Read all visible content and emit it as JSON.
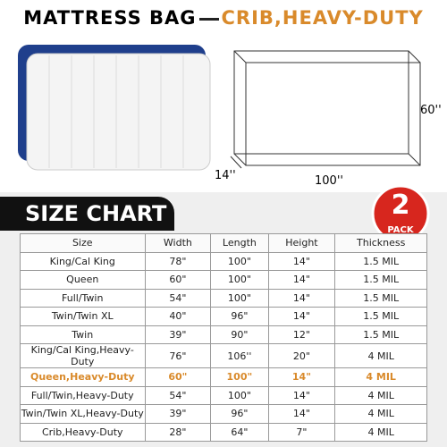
{
  "header": {
    "title": "MATTRESS BAG",
    "subtitle": "CRIB,HEAVY-DUTY"
  },
  "dimensions": {
    "height": "60''",
    "depth": "14''",
    "width": "100''"
  },
  "badge": {
    "number": "2",
    "text": "PACK"
  },
  "section_title": "SIZE CHART",
  "table": {
    "columns": [
      "Size",
      "Width",
      "Length",
      "Height",
      "Thickness"
    ],
    "rows": [
      [
        "King/Cal King",
        "78\"",
        "100\"",
        "14\"",
        "1.5 MIL"
      ],
      [
        "Queen",
        "60\"",
        "100\"",
        "14\"",
        "1.5 MIL"
      ],
      [
        "Full/Twin",
        "54\"",
        "100\"",
        "14\"",
        "1.5 MIL"
      ],
      [
        "Twin/Twin XL",
        "40\"",
        "96\"",
        "14\"",
        "1.5 MIL"
      ],
      [
        "Twin",
        "39\"",
        "90\"",
        "12\"",
        "1.5 MIL"
      ],
      [
        "King/Cal King,Heavy-Duty",
        "76\"",
        "106''",
        "20\"",
        "4 MIL"
      ],
      [
        "Queen,Heavy-Duty",
        "60\"",
        "100\"",
        "14\"",
        "4 MIL"
      ],
      [
        "Full/Twin,Heavy-Duty",
        "54\"",
        "100\"",
        "14\"",
        "4 MIL"
      ],
      [
        "Twin/Twin XL,Heavy-Duty",
        "39\"",
        "96\"",
        "14\"",
        "4 MIL"
      ],
      [
        "Crib,Heavy-Duty",
        "28\"",
        "64\"",
        "7\"",
        "4 MIL"
      ]
    ]
  }
}
